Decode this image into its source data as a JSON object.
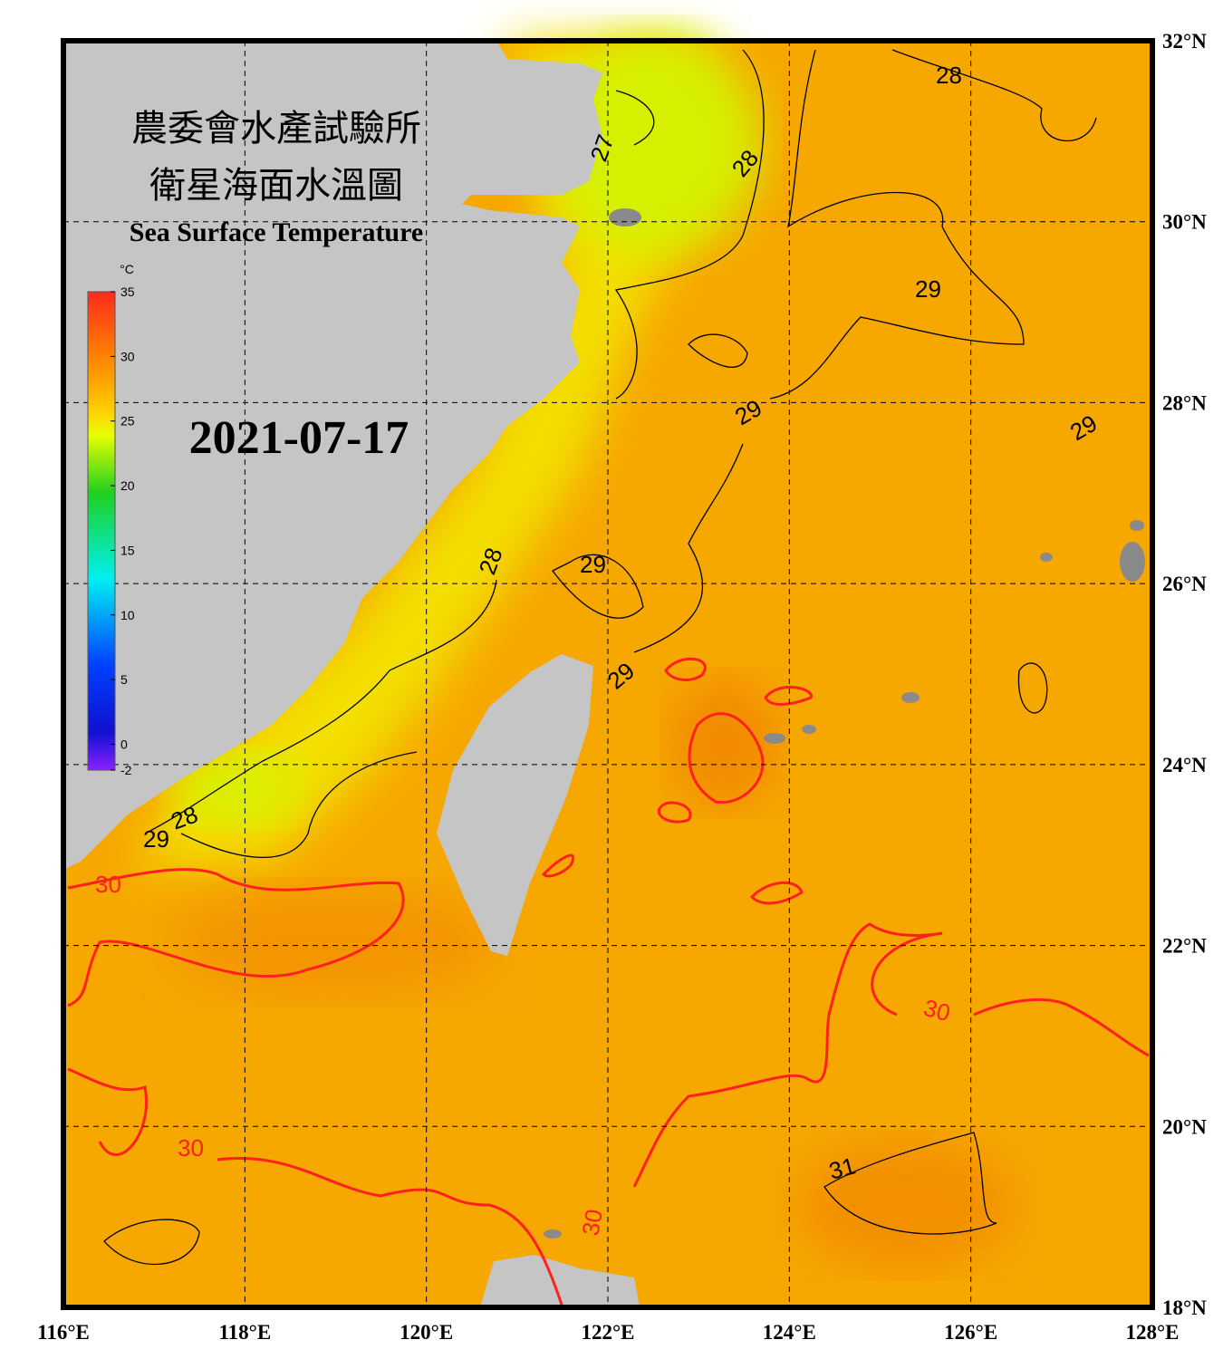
{
  "map": {
    "title_zh_1": "農委會水產試驗所",
    "title_zh_2": "衛星海面水溫圖",
    "title_en": "Sea Surface Temperature",
    "date": "2021-07-17",
    "lonlim": [
      116,
      128
    ],
    "latlim": [
      18,
      32
    ],
    "lon_ticks": [
      {
        "value": 116,
        "label": "116°E"
      },
      {
        "value": 118,
        "label": "118°E"
      },
      {
        "value": 120,
        "label": "120°E"
      },
      {
        "value": 122,
        "label": "122°E"
      },
      {
        "value": 124,
        "label": "124°E"
      },
      {
        "value": 126,
        "label": "126°E"
      },
      {
        "value": 128,
        "label": "128°E"
      }
    ],
    "lat_ticks": [
      {
        "value": 18,
        "label": "18°N"
      },
      {
        "value": 20,
        "label": "20°N"
      },
      {
        "value": 22,
        "label": "22°N"
      },
      {
        "value": 24,
        "label": "24°N"
      },
      {
        "value": 26,
        "label": "26°N"
      },
      {
        "value": 28,
        "label": "28°N"
      },
      {
        "value": 30,
        "label": "30°N"
      },
      {
        "value": 32,
        "label": "32°N"
      }
    ],
    "grid": true,
    "colorbar": {
      "unit": "°C",
      "lim": [
        -2,
        35
      ],
      "ticks": [
        -2,
        0,
        5,
        10,
        15,
        20,
        25,
        30,
        35
      ]
    },
    "contour_labels": [
      28,
      27,
      28,
      29,
      29,
      29,
      28,
      29,
      29,
      28,
      29,
      30,
      30,
      30,
      31,
      30
    ]
  }
}
